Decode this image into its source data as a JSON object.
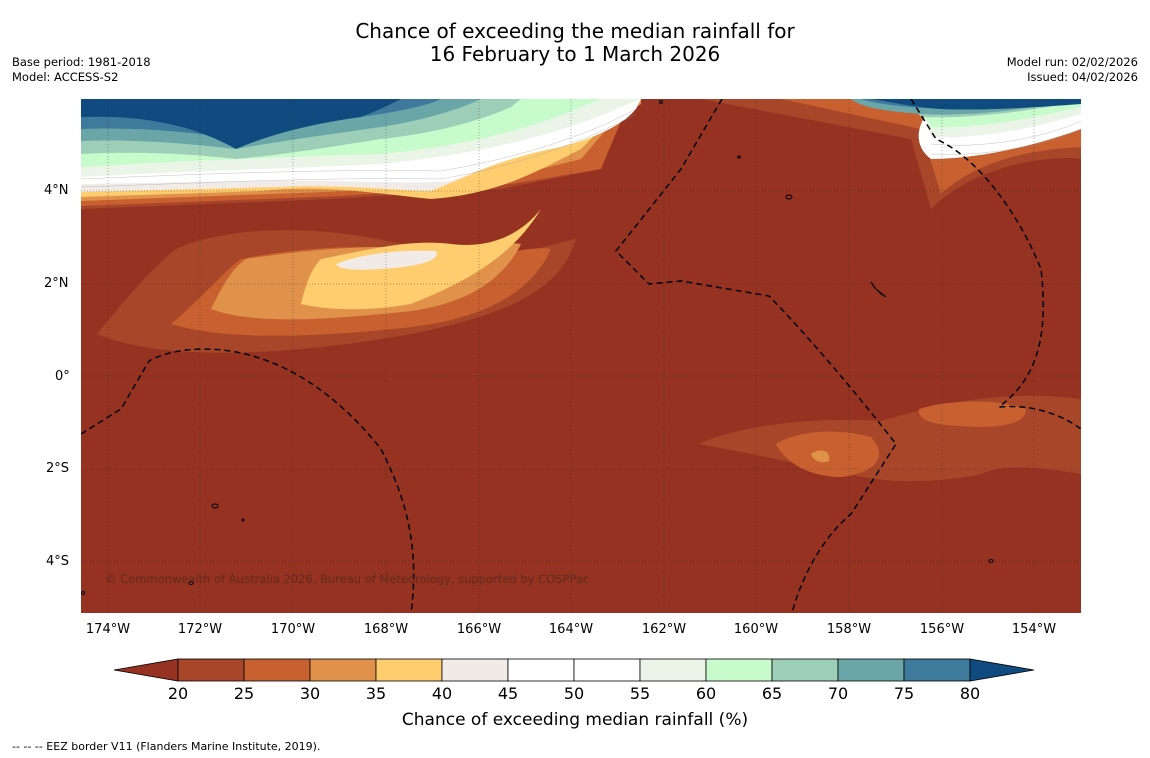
{
  "title": {
    "line1": "Chance of exceeding the median rainfall for",
    "line2": "16 February to 1 March 2026"
  },
  "meta_left": {
    "base_period": "Base period: 1981-2018",
    "model": "Model: ACCESS-S2"
  },
  "meta_right": {
    "model_run": "Model run: 02/02/2026",
    "issued": "Issued: 04/02/2026"
  },
  "map": {
    "copyright": "© Commonwealth of Australia 2026, Bureau of Meteorology, supported by COSPPac",
    "lat_labels": [
      "4°N",
      "2°N",
      "0°",
      "2°S",
      "4°S"
    ],
    "lon_labels": [
      "174°W",
      "172°W",
      "170°W",
      "168°W",
      "166°W",
      "164°W",
      "162°W",
      "160°W",
      "158°W",
      "156°W",
      "154°W"
    ]
  },
  "colorbar": {
    "ticks": [
      "20",
      "25",
      "30",
      "35",
      "40",
      "45",
      "50",
      "55",
      "60",
      "65",
      "70",
      "75",
      "80"
    ],
    "colors": [
      "#a8462a",
      "#c8612f",
      "#e0924a",
      "#ffcc6e",
      "#f0ebe6",
      "#ffffff",
      "#ffffff",
      "#eaf5e8",
      "#c8fbcc",
      "#9dcfb8",
      "#6aa5a8",
      "#3d7a9b"
    ],
    "under_color": "#953221",
    "over_color": "#104b80",
    "label": "Chance of exceeding median rainfall (%)"
  },
  "footnote": "--  --  -- EEZ border V11 (Flanders Marine Institute, 2019)."
}
